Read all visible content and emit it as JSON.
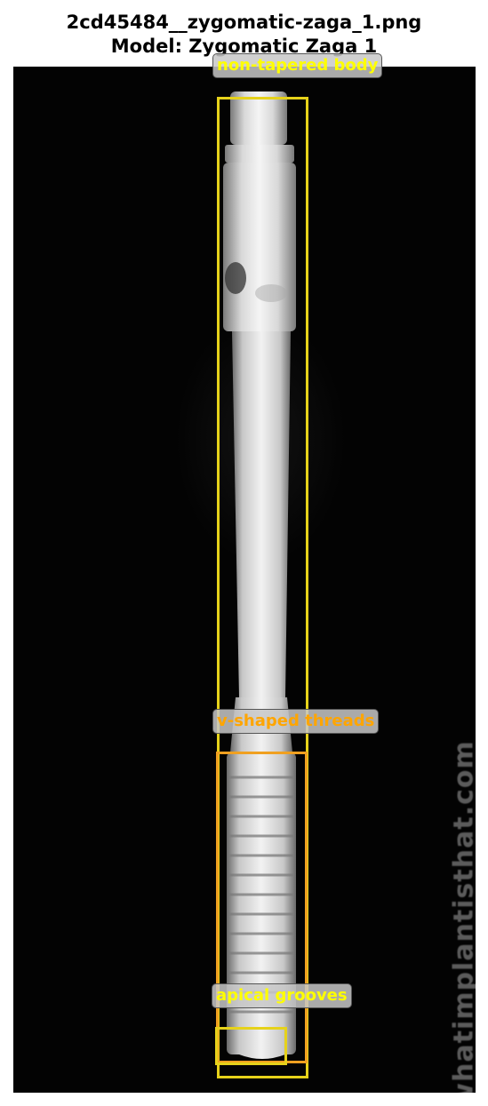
{
  "figure": {
    "title_line1": "2cd45484__zygomatic-zaga_1.png",
    "title_line2": "Model: Zygomatic Zaga 1",
    "watermark": "whatimplantisthat.com"
  },
  "annotations": [
    {
      "label": "non-tapered body",
      "color": "#ffff00",
      "box_color": "#e6d21a"
    },
    {
      "label": "v-shaped threads",
      "color": "#ffa500",
      "box_color": "#f0a020"
    },
    {
      "label": "apical grooves",
      "color": "#ffff00",
      "box_color": "#e6d21a"
    }
  ]
}
